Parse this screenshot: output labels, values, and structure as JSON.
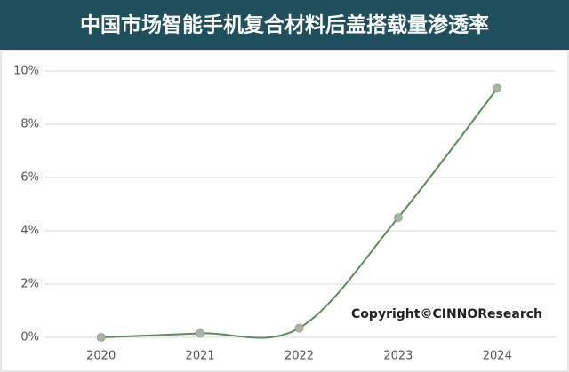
{
  "chart_data": {
    "type": "line",
    "title": "中国市场智能手机复合材料后盖搭载量渗透率",
    "categories": [
      "2020",
      "2021",
      "2022",
      "2023",
      "2024"
    ],
    "values": [
      0,
      0.15,
      0.35,
      4.5,
      9.35
    ],
    "color": "#5b8c5a",
    "marker_color": "#a9b5a3",
    "ylim": [
      0,
      10
    ],
    "yticks": [
      {
        "value": 0,
        "label": "0%"
      },
      {
        "value": 2,
        "label": "2%"
      },
      {
        "value": 4,
        "label": "4%"
      },
      {
        "value": 6,
        "label": "6%"
      },
      {
        "value": 8,
        "label": "8%"
      },
      {
        "value": 10,
        "label": "10%"
      }
    ],
    "grid": true,
    "annotation": "Copyright©CINNOResearch"
  }
}
